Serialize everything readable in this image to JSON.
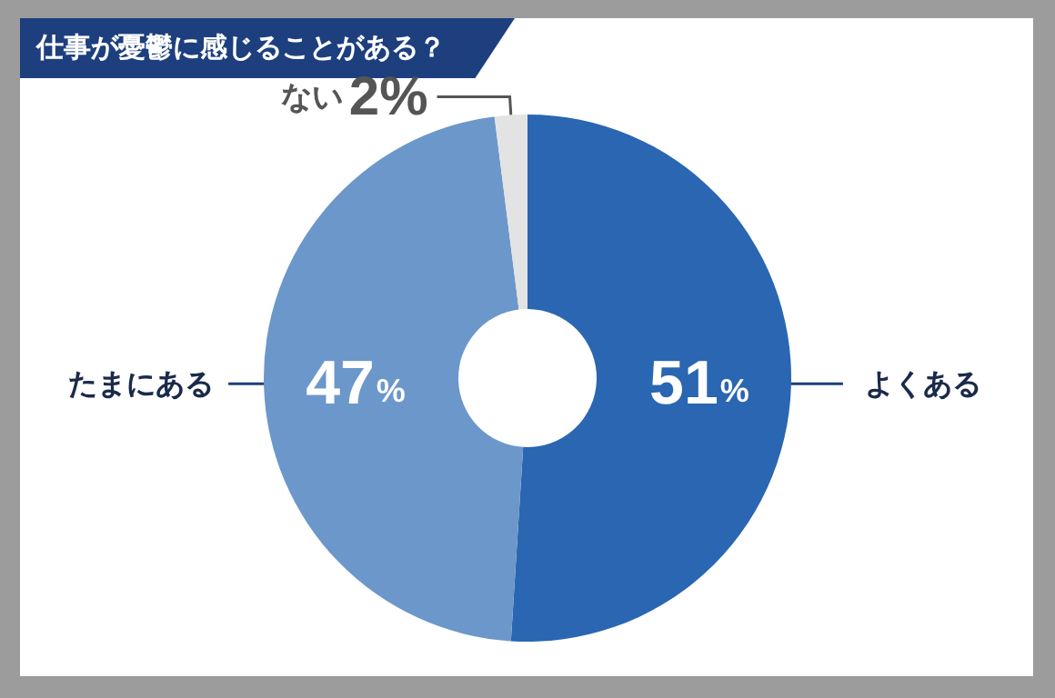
{
  "chart_data": {
    "type": "donut",
    "title": "仕事が憂鬱に感じることがある？",
    "categories": [
      "よくある",
      "たまにある",
      "ない"
    ],
    "values": [
      51,
      47,
      2
    ],
    "colors": [
      "#2a66b1",
      "#6b97cb",
      "#e3e3e3"
    ],
    "value_labels": [
      "51%",
      "47%",
      "2%"
    ],
    "legend": false
  }
}
